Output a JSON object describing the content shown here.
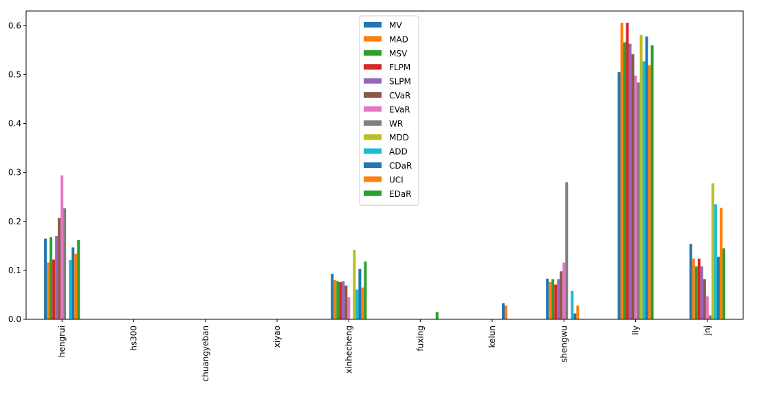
{
  "chart_data": {
    "type": "bar",
    "title": "",
    "xlabel": "",
    "ylabel": "",
    "ylim": [
      0,
      0.63
    ],
    "yticks": [
      0.0,
      0.1,
      0.2,
      0.3,
      0.4,
      0.5,
      0.6
    ],
    "ytick_labels": [
      "0.0",
      "0.1",
      "0.2",
      "0.3",
      "0.4",
      "0.5",
      "0.6"
    ],
    "legend_position": "upper-center",
    "categories": [
      "hengrui",
      "hs300",
      "chuangyeban",
      "xiyao",
      "xinhecheng",
      "fuxing",
      "kelun",
      "shengwu",
      "lly",
      "jnj"
    ],
    "series": [
      {
        "name": "MV",
        "color": "#1f77b4",
        "values": [
          0.165,
          0,
          0,
          0,
          0.093,
          0,
          0,
          0.083,
          0.505,
          0.154
        ]
      },
      {
        "name": "MAD",
        "color": "#ff7f0e",
        "values": [
          0.116,
          0,
          0,
          0,
          0.08,
          0,
          0,
          0.076,
          0.606,
          0.124
        ]
      },
      {
        "name": "MSV",
        "color": "#2ca02c",
        "values": [
          0.168,
          0,
          0,
          0,
          0.078,
          0,
          0,
          0.082,
          0.566,
          0.108
        ]
      },
      {
        "name": "FLPM",
        "color": "#d62728",
        "values": [
          0.122,
          0,
          0,
          0,
          0.076,
          0,
          0,
          0.071,
          0.606,
          0.124
        ]
      },
      {
        "name": "SLPM",
        "color": "#9467bd",
        "values": [
          0.17,
          0,
          0,
          0,
          0.078,
          0,
          0,
          0.082,
          0.563,
          0.108
        ]
      },
      {
        "name": "CVaR",
        "color": "#8c564b",
        "values": [
          0.207,
          0,
          0,
          0,
          0.069,
          0,
          0,
          0.098,
          0.542,
          0.082
        ]
      },
      {
        "name": "EVaR",
        "color": "#e377c2",
        "values": [
          0.294,
          0,
          0,
          0,
          0.045,
          0,
          0,
          0.116,
          0.498,
          0.047
        ]
      },
      {
        "name": "WR",
        "color": "#7f7f7f",
        "values": [
          0.227,
          0,
          0,
          0,
          0,
          0,
          0,
          0.28,
          0.484,
          0.008
        ]
      },
      {
        "name": "MDD",
        "color": "#bcbd22",
        "values": [
          0,
          0,
          0,
          0,
          0.142,
          0,
          0,
          0,
          0.581,
          0.278
        ]
      },
      {
        "name": "ADD",
        "color": "#17becf",
        "values": [
          0.121,
          0,
          0,
          0,
          0.061,
          0,
          0,
          0.058,
          0.527,
          0.235
        ]
      },
      {
        "name": "CDaR",
        "color": "#1f77b4",
        "values": [
          0.147,
          0,
          0,
          0,
          0.103,
          0,
          0.033,
          0.012,
          0.578,
          0.128
        ]
      },
      {
        "name": "UCI",
        "color": "#ff7f0e",
        "values": [
          0.134,
          0,
          0,
          0,
          0.065,
          0,
          0.028,
          0.028,
          0.519,
          0.228
        ]
      },
      {
        "name": "EDaR",
        "color": "#2ca02c",
        "values": [
          0.162,
          0,
          0,
          0,
          0.118,
          0.015,
          0,
          0,
          0.56,
          0.145
        ]
      }
    ]
  }
}
